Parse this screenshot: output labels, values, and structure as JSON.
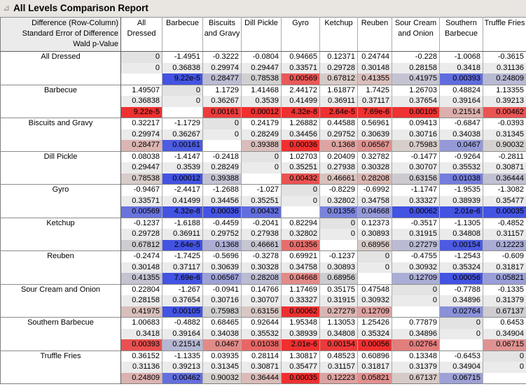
{
  "title_bar": {
    "title": "All Levels Comparison Report",
    "disclosure_glyph": "⊿"
  },
  "colors": {
    "significant_positive": "#ee3030",
    "significant_negative": "#4353e2",
    "neutral_cell": "#d6d3cf",
    "se_row_bg": "#ebebeb",
    "diagonal_bg": "#e3e3e3",
    "title_bar_bg": "#e9e6e1"
  },
  "table": {
    "corner_lines": [
      "Difference (Row-Column)",
      "Standard Error of Difference",
      "Wald p-Value"
    ],
    "columns": [
      "All Dressed",
      "Barbecue",
      "Biscuits and Gravy",
      "Dill Pickle",
      "Gyro",
      "Ketchup",
      "Reuben",
      "Sour Cream and Onion",
      "Southern Barbecue",
      "Truffle Fries"
    ],
    "rows": [
      {
        "label": "All Dressed",
        "diff": [
          "0",
          "-1.4951",
          "-0.3222",
          "-0.0804",
          "0.94665",
          "0.12371",
          "0.24744",
          "-0.228",
          "-1.0068",
          "-0.3615"
        ],
        "se": [
          "0",
          "0.36838",
          "0.29974",
          "0.29447",
          "0.33571",
          "0.29728",
          "0.30148",
          "0.28158",
          "0.3418",
          "0.31136"
        ],
        "p": [
          "",
          "9.22e-5",
          "0.28477",
          "0.78538",
          "0.00569",
          "0.67812",
          "0.41355",
          "0.41975",
          "0.00393",
          "0.24809"
        ]
      },
      {
        "label": "Barbecue",
        "diff": [
          "1.49507",
          "0",
          "1.1729",
          "1.41468",
          "2.44172",
          "1.61877",
          "1.7425",
          "1.26703",
          "0.48824",
          "1.13355"
        ],
        "se": [
          "0.36838",
          "0",
          "0.36267",
          "0.3539",
          "0.41499",
          "0.36911",
          "0.37117",
          "0.37654",
          "0.39164",
          "0.39213"
        ],
        "p": [
          "9.22e-5",
          "",
          "0.00161",
          "0.00012",
          "4.32e-8",
          "2.64e-5",
          "7.69e-6",
          "0.00105",
          "0.21514",
          "0.00462"
        ]
      },
      {
        "label": "Biscuits and Gravy",
        "diff": [
          "0.32217",
          "-1.1729",
          "0",
          "0.24179",
          "1.26882",
          "0.44588",
          "0.56961",
          "0.09413",
          "-0.6847",
          "-0.0393"
        ],
        "se": [
          "0.29974",
          "0.36267",
          "0",
          "0.28249",
          "0.34456",
          "0.29752",
          "0.30639",
          "0.30716",
          "0.34038",
          "0.31345"
        ],
        "p": [
          "0.28477",
          "0.00161",
          "",
          "0.39388",
          "0.00036",
          "0.1368",
          "0.06567",
          "0.75983",
          "0.0467",
          "0.90032"
        ]
      },
      {
        "label": "Dill Pickle",
        "diff": [
          "0.08038",
          "-1.4147",
          "-0.2418",
          "0",
          "1.02703",
          "0.20409",
          "0.32782",
          "-0.1477",
          "-0.9264",
          "-0.2811"
        ],
        "se": [
          "0.29447",
          "0.3539",
          "0.28249",
          "0",
          "0.35251",
          "0.27938",
          "0.30328",
          "0.30707",
          "0.35532",
          "0.30871"
        ],
        "p": [
          "0.78538",
          "0.00012",
          "0.39388",
          "",
          "0.00432",
          "0.46661",
          "0.28208",
          "0.63156",
          "0.01038",
          "0.36444"
        ]
      },
      {
        "label": "Gyro",
        "diff": [
          "-0.9467",
          "-2.4417",
          "-1.2688",
          "-1.027",
          "0",
          "-0.8229",
          "-0.6992",
          "-1.1747",
          "-1.9535",
          "-1.3082"
        ],
        "se": [
          "0.33571",
          "0.41499",
          "0.34456",
          "0.35251",
          "0",
          "0.32802",
          "0.34758",
          "0.33327",
          "0.38939",
          "0.35477"
        ],
        "p": [
          "0.00569",
          "4.32e-8",
          "0.00036",
          "0.00432",
          "",
          "0.01356",
          "0.04668",
          "0.00062",
          "2.01e-6",
          "0.00035"
        ]
      },
      {
        "label": "Ketchup",
        "diff": [
          "-0.1237",
          "-1.6188",
          "-0.4459",
          "-0.2041",
          "0.82294",
          "0",
          "0.12373",
          "-0.3517",
          "-1.1305",
          "-0.4852"
        ],
        "se": [
          "0.29728",
          "0.36911",
          "0.29752",
          "0.27938",
          "0.32802",
          "0",
          "0.30893",
          "0.31915",
          "0.34808",
          "0.31157"
        ],
        "p": [
          "0.67812",
          "2.64e-5",
          "0.1368",
          "0.46661",
          "0.01356",
          "",
          "0.68956",
          "0.27279",
          "0.00154",
          "0.12223"
        ]
      },
      {
        "label": "Reuben",
        "diff": [
          "-0.2474",
          "-1.7425",
          "-0.5696",
          "-0.3278",
          "0.69921",
          "-0.1237",
          "0",
          "-0.4755",
          "-1.2543",
          "-0.609"
        ],
        "se": [
          "0.30148",
          "0.37117",
          "0.30639",
          "0.30328",
          "0.34758",
          "0.30893",
          "0",
          "0.30932",
          "0.35324",
          "0.31817"
        ],
        "p": [
          "0.41355",
          "7.69e-6",
          "0.06567",
          "0.28208",
          "0.04668",
          "0.68956",
          "",
          "0.12709",
          "0.00056",
          "0.05821"
        ]
      },
      {
        "label": "Sour Cream and Onion",
        "diff": [
          "0.22804",
          "-1.267",
          "-0.0941",
          "0.14766",
          "1.17469",
          "0.35175",
          "0.47548",
          "0",
          "-0.7788",
          "-0.1335"
        ],
        "se": [
          "0.28158",
          "0.37654",
          "0.30716",
          "0.30707",
          "0.33327",
          "0.31915",
          "0.30932",
          "0",
          "0.34896",
          "0.31379"
        ],
        "p": [
          "0.41975",
          "0.00105",
          "0.75983",
          "0.63156",
          "0.00062",
          "0.27279",
          "0.12709",
          "",
          "0.02764",
          "0.67137"
        ]
      },
      {
        "label": "Southern Barbecue",
        "diff": [
          "1.00683",
          "-0.4882",
          "0.68465",
          "0.92644",
          "1.95348",
          "1.13053",
          "1.25426",
          "0.77879",
          "0",
          "0.6453"
        ],
        "se": [
          "0.3418",
          "0.39164",
          "0.34038",
          "0.35532",
          "0.38939",
          "0.34808",
          "0.35324",
          "0.34896",
          "0",
          "0.34904"
        ],
        "p": [
          "0.00393",
          "0.21514",
          "0.0467",
          "0.01038",
          "2.01e-6",
          "0.00154",
          "0.00056",
          "0.02764",
          "",
          "0.06715"
        ]
      },
      {
        "label": "Truffle Fries",
        "diff": [
          "0.36152",
          "-1.1335",
          "0.03935",
          "0.28114",
          "1.30817",
          "0.48523",
          "0.60896",
          "0.13348",
          "-0.6453",
          "0"
        ],
        "se": [
          "0.31136",
          "0.39213",
          "0.31345",
          "0.30871",
          "0.35477",
          "0.31157",
          "0.31817",
          "0.31379",
          "0.34904",
          "0"
        ],
        "p": [
          "0.24809",
          "0.00462",
          "0.90032",
          "0.36444",
          "0.00035",
          "0.12223",
          "0.05821",
          "0.67137",
          "0.06715",
          ""
        ]
      }
    ]
  }
}
